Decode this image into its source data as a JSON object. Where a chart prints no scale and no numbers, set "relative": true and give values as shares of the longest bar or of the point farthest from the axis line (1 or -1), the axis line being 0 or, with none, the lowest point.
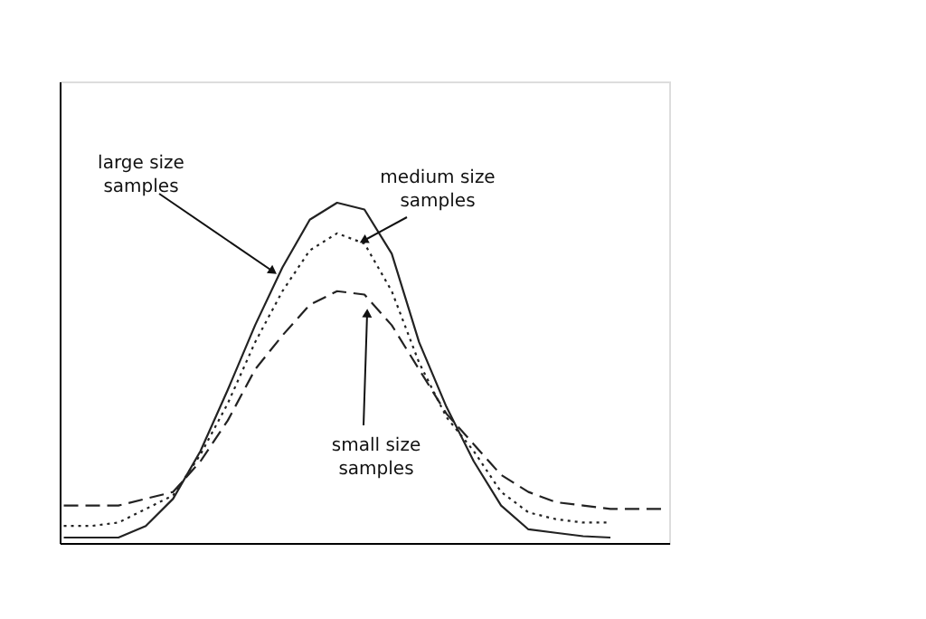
{
  "chart_data": {
    "type": "line",
    "relative": true,
    "legend": false,
    "grid": false,
    "tick_labels": false,
    "marker": "none",
    "categories": [
      null,
      null,
      null,
      null,
      null,
      null,
      null,
      null,
      null,
      null,
      null,
      null,
      null,
      null,
      null,
      null,
      null,
      null,
      null,
      null,
      null,
      null,
      null
    ],
    "series": [
      {
        "name": "large size samples",
        "color": "#222222",
        "line_style": "solid",
        "values": [
          0.016,
          0.016,
          0.016,
          0.05,
          0.13,
          0.27,
          0.45,
          0.64,
          0.81,
          0.95,
          1.0,
          0.98,
          0.85,
          0.59,
          0.4,
          0.24,
          0.11,
          0.04,
          0.03,
          0.02,
          0.016,
          null,
          null
        ]
      },
      {
        "name": "medium size samples",
        "color": "#222222",
        "line_style": "dotted",
        "values": [
          0.05,
          0.05,
          0.06,
          0.1,
          0.14,
          0.26,
          0.41,
          0.59,
          0.74,
          0.86,
          0.91,
          0.88,
          0.74,
          0.53,
          0.37,
          0.27,
          0.15,
          0.09,
          0.07,
          0.06,
          0.06,
          null,
          null
        ]
      },
      {
        "name": "small size samples",
        "color": "#222222",
        "line_style": "dashed",
        "values": [
          0.11,
          0.11,
          0.11,
          0.13,
          0.15,
          0.24,
          0.36,
          0.51,
          0.61,
          0.7,
          0.74,
          0.73,
          0.64,
          0.51,
          0.38,
          0.29,
          0.2,
          0.15,
          0.12,
          0.11,
          0.1,
          0.1,
          0.1
        ]
      }
    ]
  }
}
